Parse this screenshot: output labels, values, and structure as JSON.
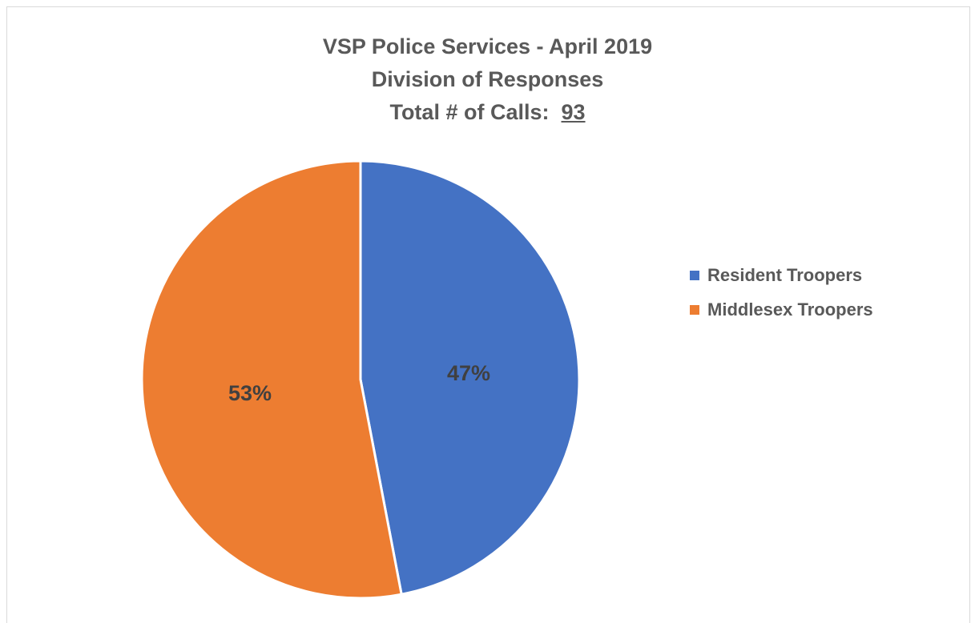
{
  "chart_data": {
    "type": "pie",
    "title": "VSP Police Services - April 2019",
    "subtitle": "Division of Responses",
    "total_label": "Total # of Calls:",
    "total_value": "93",
    "slices": [
      {
        "name": "Resident Troopers",
        "value": 47,
        "label": "47%",
        "color": "#4472C4"
      },
      {
        "name": "Middlesex Troopers",
        "value": 53,
        "label": "53%",
        "color": "#ED7D31"
      }
    ],
    "legend_position": "right"
  }
}
